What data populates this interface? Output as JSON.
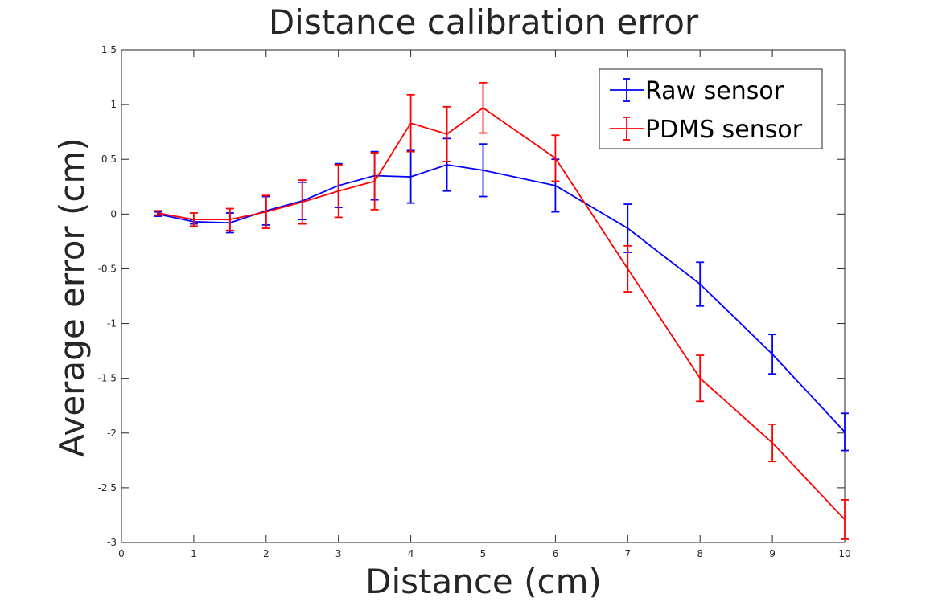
{
  "chart_data": {
    "type": "line",
    "title": "Distance calibration error",
    "xlabel": "Distance (cm)",
    "ylabel": "Average error (cm)",
    "xlim": [
      0,
      10
    ],
    "ylim": [
      -3,
      1.5
    ],
    "xticks": [
      0,
      1,
      2,
      3,
      4,
      5,
      6,
      7,
      8,
      9,
      10
    ],
    "yticks": [
      1.5,
      1,
      0.5,
      0,
      -0.5,
      -1,
      -1.5,
      -2,
      -2.5,
      -3
    ],
    "xtick_labels": [
      "0",
      "1",
      "2",
      "3",
      "4",
      "5",
      "6",
      "7",
      "8",
      "9",
      "10"
    ],
    "ytick_labels": [
      "1.5",
      "1",
      "0.5",
      "0",
      "-0.5",
      "-1",
      "-1.5",
      "-2",
      "-2.5",
      "-3"
    ],
    "grid": false,
    "legend_position": "top-right",
    "series": [
      {
        "name": "Raw sensor",
        "color": "#0000ff",
        "x": [
          0.5,
          1,
          1.5,
          2,
          2.5,
          3,
          3.5,
          4,
          4.5,
          5,
          6,
          7,
          8,
          9,
          10
        ],
        "y": [
          0.0,
          -0.07,
          -0.08,
          0.03,
          0.12,
          0.26,
          0.35,
          0.34,
          0.45,
          0.4,
          0.26,
          -0.13,
          -0.64,
          -1.28,
          -1.99
        ],
        "err": [
          0.02,
          0.02,
          0.09,
          0.13,
          0.17,
          0.2,
          0.22,
          0.24,
          0.24,
          0.24,
          0.24,
          0.22,
          0.2,
          0.18,
          0.17
        ]
      },
      {
        "name": "PDMS sensor",
        "color": "#ff0000",
        "x": [
          0.5,
          1,
          1.5,
          2,
          2.5,
          3,
          3.5,
          4,
          4.5,
          5,
          6,
          7,
          8,
          9,
          10
        ],
        "y": [
          0.01,
          -0.05,
          -0.05,
          0.02,
          0.11,
          0.21,
          0.3,
          0.83,
          0.73,
          0.97,
          0.51,
          -0.5,
          -1.5,
          -2.09,
          -2.79
        ],
        "err": [
          0.02,
          0.06,
          0.1,
          0.15,
          0.2,
          0.24,
          0.26,
          0.26,
          0.25,
          0.23,
          0.21,
          0.21,
          0.21,
          0.17,
          0.18
        ]
      }
    ]
  }
}
